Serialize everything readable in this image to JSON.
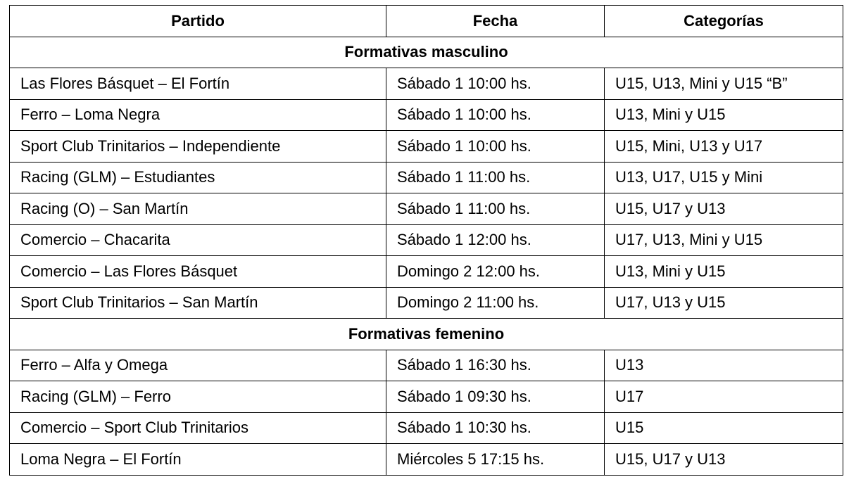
{
  "headers": [
    "Partido",
    "Fecha",
    "Categorías"
  ],
  "sections": [
    {
      "title": "Formativas masculino",
      "rows": [
        [
          "Las Flores Básquet – El Fortín",
          "Sábado 1 10:00 hs.",
          "U15, U13, Mini y U15 “B”"
        ],
        [
          "Ferro – Loma Negra",
          "Sábado 1 10:00 hs.",
          "U13, Mini y U15"
        ],
        [
          "Sport Club Trinitarios – Independiente",
          "Sábado 1 10:00 hs.",
          "U15, Mini, U13 y U17"
        ],
        [
          "Racing (GLM) – Estudiantes",
          "Sábado 1 11:00 hs.",
          "U13, U17, U15 y Mini"
        ],
        [
          "Racing (O) – San Martín",
          "Sábado 1 11:00 hs.",
          "U15, U17 y U13"
        ],
        [
          "Comercio – Chacarita",
          "Sábado 1 12:00 hs.",
          "U17, U13, Mini y U15"
        ],
        [
          "Comercio – Las Flores Básquet",
          "Domingo 2 12:00 hs.",
          "U13, Mini y U15"
        ],
        [
          "Sport Club Trinitarios – San Martín",
          "Domingo 2 11:00 hs.",
          "U17, U13 y U15"
        ]
      ]
    },
    {
      "title": "Formativas femenino",
      "rows": [
        [
          "Ferro – Alfa y Omega",
          "Sábado 1 16:30 hs.",
          "U13"
        ],
        [
          "Racing (GLM) – Ferro",
          "Sábado 1 09:30 hs.",
          "U17"
        ],
        [
          "Comercio – Sport Club Trinitarios",
          "Sábado 1 10:30 hs.",
          "U15"
        ],
        [
          "Loma Negra – El Fortín",
          "Miércoles 5 17:15 hs.",
          "U15, U17 y U13"
        ]
      ]
    }
  ]
}
